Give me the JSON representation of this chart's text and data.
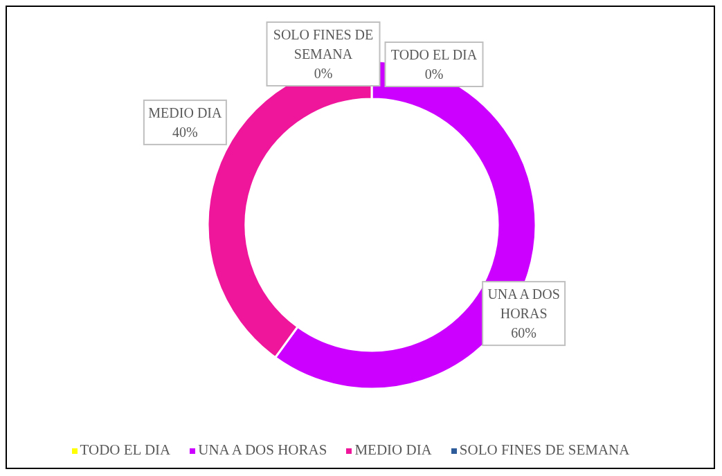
{
  "chart_data": {
    "type": "donut",
    "categories": [
      "TODO EL DIA",
      "UNA A DOS HORAS",
      "MEDIO DIA",
      "SOLO FINES DE SEMANA"
    ],
    "values": [
      0,
      60,
      40,
      0
    ],
    "colors": [
      "#ffff00",
      "#cc00ff",
      "#f0169b",
      "#2e5c9a"
    ],
    "value_labels": [
      "0%",
      "60%",
      "40%",
      "0%"
    ],
    "legend": "bottom"
  }
}
